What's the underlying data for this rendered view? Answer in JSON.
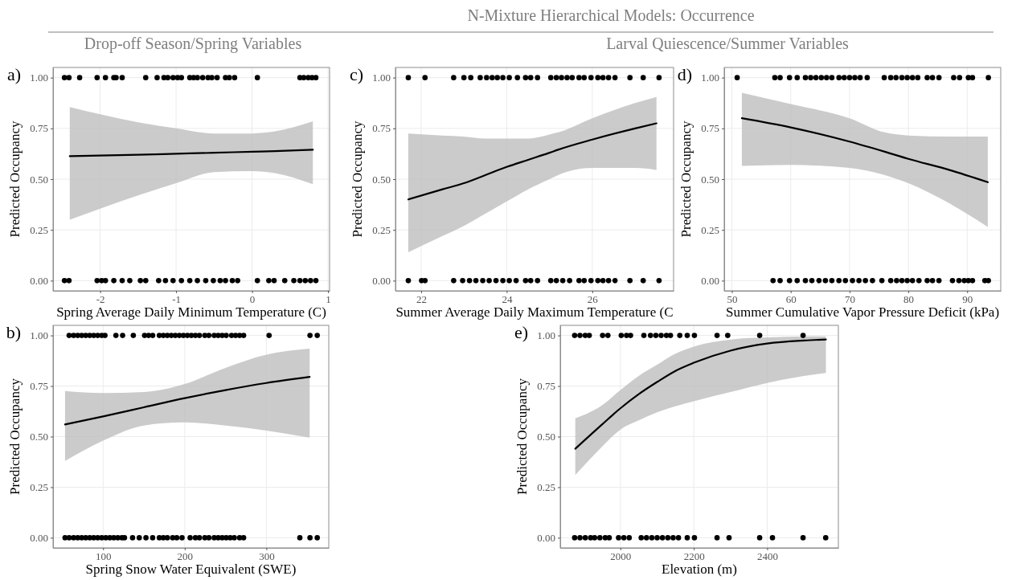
{
  "chart_data": [
    {
      "type": "other",
      "title": "N-Mixture Hierarchical Models: Occurrence",
      "annotations": [
        "Drop-off Season/Spring Variables",
        "Larval Quiescence/Summer Variables"
      ]
    },
    {
      "type": "line",
      "annotations": [
        "a)"
      ],
      "xlabel": "Spring Average Daily Minimum Temperature (C)",
      "ylabel": "Predicted Occupancy",
      "xlim": [
        -2.62,
        1.02
      ],
      "ylim": [
        -0.05,
        1.05
      ],
      "xticks": [
        -2,
        -1,
        0,
        1
      ],
      "yticks": [
        {
          "value": 0,
          "label": "0.00"
        },
        {
          "value": 0.25,
          "label": "0.25"
        },
        {
          "value": 0.5,
          "label": "0.50"
        },
        {
          "value": 0.75,
          "label": "0.75"
        },
        {
          "value": 1,
          "label": "1.00"
        }
      ],
      "grid": true,
      "series": [
        {
          "type": "line",
          "color": "#000000",
          "x": [
            -2.4,
            -1.5,
            -1,
            -0.5,
            0,
            0.3,
            0.8
          ],
          "values": [
            0.613,
            0.62,
            0.625,
            0.63,
            0.635,
            0.638,
            0.645
          ],
          "lower": [
            0.3,
            0.42,
            0.48,
            0.535,
            0.54,
            0.53,
            0.475
          ],
          "upper": [
            0.855,
            0.78,
            0.75,
            0.725,
            0.725,
            0.735,
            0.785
          ]
        },
        {
          "type": "scatter",
          "marker": "circle",
          "color": "#000000",
          "x": [
            -2.47,
            -2.41,
            -2.27,
            -2.04,
            -1.93,
            -1.82,
            -1.79,
            -1.71,
            -1.4,
            -1.25,
            -1.16,
            -1.11,
            -1.04,
            -0.98,
            -0.93,
            -0.82,
            -0.77,
            -0.72,
            -0.65,
            -0.58,
            -0.53,
            -0.46,
            -0.35,
            -0.3,
            -0.23,
            0.07,
            0.63,
            0.68,
            0.74,
            0.79,
            0.84
          ],
          "values": [
            1,
            1,
            1,
            1,
            1,
            1,
            1,
            1,
            1,
            1,
            1,
            1,
            1,
            1,
            1,
            1,
            1,
            1,
            1,
            1,
            1,
            1,
            1,
            1,
            1,
            1,
            1,
            1,
            1,
            1,
            1
          ]
        },
        {
          "type": "scatter",
          "marker": "circle",
          "color": "#000000",
          "x": [
            -2.47,
            -2.41,
            -2.04,
            -1.98,
            -1.93,
            -1.82,
            -1.71,
            -1.61,
            -1.47,
            -1.4,
            -1.23,
            -1.14,
            -1.04,
            -0.93,
            -0.82,
            -0.72,
            -0.61,
            -0.51,
            -0.42,
            -0.35,
            -0.26,
            -0.19,
            0.07,
            0.22,
            0.29,
            0.43,
            0.55,
            0.63,
            0.7,
            0.77,
            0.84
          ],
          "values": [
            0,
            0,
            0,
            0,
            0,
            0,
            0,
            0,
            0,
            0,
            0,
            0,
            0,
            0,
            0,
            0,
            0,
            0,
            0,
            0,
            0,
            0,
            0,
            0,
            0,
            0,
            0,
            0,
            0,
            0,
            0
          ]
        }
      ]
    },
    {
      "type": "line",
      "annotations": [
        "c)"
      ],
      "xlabel": "Summer Average Daily Maximum Temperature (C",
      "ylabel": "Predicted Occupancy",
      "xlim": [
        21.4,
        27.9
      ],
      "ylim": [
        -0.05,
        1.05
      ],
      "xticks": [
        22,
        24,
        26
      ],
      "yticks": [
        {
          "value": 0,
          "label": "0.00"
        },
        {
          "value": 0.25,
          "label": "0.25"
        },
        {
          "value": 0.5,
          "label": "0.50"
        },
        {
          "value": 0.75,
          "label": "0.75"
        },
        {
          "value": 1,
          "label": "1.00"
        }
      ],
      "grid": true,
      "series": [
        {
          "type": "line",
          "color": "#000000",
          "x": [
            21.7,
            22.5,
            23,
            23.5,
            24,
            24.5,
            25,
            25.2,
            26,
            27,
            27.5
          ],
          "values": [
            0.4,
            0.45,
            0.48,
            0.52,
            0.56,
            0.595,
            0.63,
            0.645,
            0.695,
            0.75,
            0.775
          ],
          "lower": [
            0.14,
            0.22,
            0.27,
            0.33,
            0.39,
            0.45,
            0.5,
            0.52,
            0.555,
            0.555,
            0.545
          ],
          "upper": [
            0.725,
            0.715,
            0.71,
            0.7,
            0.7,
            0.7,
            0.72,
            0.73,
            0.8,
            0.875,
            0.905
          ]
        },
        {
          "type": "scatter",
          "marker": "circle",
          "color": "#000000",
          "x": [
            21.7,
            22.09,
            22.76,
            23.0,
            23.16,
            23.38,
            23.53,
            23.66,
            23.78,
            23.91,
            24.06,
            24.25,
            24.44,
            24.56,
            24.72,
            25.03,
            25.16,
            25.28,
            25.41,
            25.53,
            25.69,
            25.81,
            25.97,
            26.13,
            26.25,
            26.38,
            26.53,
            26.88,
            27.19,
            27.56
          ],
          "values": [
            1,
            1,
            1,
            1,
            1,
            1,
            1,
            1,
            1,
            1,
            1,
            1,
            1,
            1,
            1,
            1,
            1,
            1,
            1,
            1,
            1,
            1,
            1,
            1,
            1,
            1,
            1,
            1,
            1,
            1
          ]
        },
        {
          "type": "scatter",
          "marker": "circle",
          "color": "#000000",
          "x": [
            21.7,
            22.01,
            22.09,
            22.76,
            22.97,
            23.13,
            23.28,
            23.44,
            23.59,
            23.75,
            23.91,
            24.06,
            24.22,
            24.44,
            24.56,
            24.72,
            25.03,
            25.16,
            25.31,
            25.47,
            25.69,
            25.81,
            25.97,
            26.13,
            26.25,
            26.38,
            26.53,
            26.88,
            27.19,
            27.56
          ],
          "values": [
            0,
            0,
            0,
            0,
            0,
            0,
            0,
            0,
            0,
            0,
            0,
            0,
            0,
            0,
            0,
            0,
            0,
            0,
            0,
            0,
            0,
            0,
            0,
            0,
            0,
            0,
            0,
            0,
            0,
            0
          ]
        }
      ]
    },
    {
      "type": "line",
      "annotations": [
        "d)"
      ],
      "xlabel": "Summer Cumulative Vapor Pressure Deficit (kPa)",
      "ylabel": "Predicted Occupancy",
      "xlim": [
        48.7,
        95.7
      ],
      "ylim": [
        -0.05,
        1.05
      ],
      "xticks": [
        50,
        60,
        70,
        80,
        90
      ],
      "yticks": [
        {
          "value": 0,
          "label": "0.00"
        },
        {
          "value": 0.25,
          "label": "0.25"
        },
        {
          "value": 0.5,
          "label": "0.50"
        },
        {
          "value": 0.75,
          "label": "0.75"
        },
        {
          "value": 1,
          "label": "1.00"
        }
      ],
      "grid": true,
      "series": [
        {
          "type": "line",
          "color": "#000000",
          "x": [
            51.7,
            60,
            70,
            76,
            80,
            87,
            93.5
          ],
          "values": [
            0.8,
            0.755,
            0.685,
            0.635,
            0.6,
            0.545,
            0.485
          ],
          "lower": [
            0.565,
            0.57,
            0.555,
            0.52,
            0.48,
            0.38,
            0.265
          ],
          "upper": [
            0.925,
            0.87,
            0.8,
            0.73,
            0.715,
            0.71,
            0.71
          ]
        },
        {
          "type": "scatter",
          "marker": "circle",
          "color": "#000000",
          "x": [
            50.9,
            57.3,
            58.2,
            59.8,
            61.1,
            62.5,
            63.4,
            64.3,
            65.2,
            66.1,
            67.0,
            68.2,
            69.1,
            70.0,
            70.9,
            71.8,
            73.0,
            75.9,
            77.0,
            77.9,
            78.9,
            79.8,
            80.7,
            81.6,
            83.2,
            84.1,
            85.2,
            87.7,
            88.7,
            90.2,
            90.9,
            93.6
          ],
          "values": [
            1,
            1,
            1,
            1,
            1,
            1,
            1,
            1,
            1,
            1,
            1,
            1,
            1,
            1,
            1,
            1,
            1,
            1,
            1,
            1,
            1,
            1,
            1,
            1,
            1,
            1,
            1,
            1,
            1,
            1,
            1,
            1
          ]
        },
        {
          "type": "scatter",
          "marker": "circle",
          "color": "#000000",
          "x": [
            57.0,
            58.2,
            59.8,
            61.1,
            62.5,
            63.6,
            64.8,
            65.9,
            67.0,
            68.2,
            69.3,
            70.5,
            71.6,
            72.7,
            73.9,
            75.5,
            77.0,
            78.0,
            78.9,
            79.8,
            80.7,
            81.8,
            83.2,
            84.1,
            85.2,
            87.5,
            88.6,
            89.5,
            90.2,
            90.9,
            93.0,
            93.6
          ],
          "values": [
            0,
            0,
            0,
            0,
            0,
            0,
            0,
            0,
            0,
            0,
            0,
            0,
            0,
            0,
            0,
            0,
            0,
            0,
            0,
            0,
            0,
            0,
            0,
            0,
            0,
            0,
            0,
            0,
            0,
            0,
            0,
            0
          ]
        }
      ]
    },
    {
      "type": "line",
      "annotations": [
        "b)"
      ],
      "xlabel": "Spring Snow Water Equivalent (SWE)",
      "ylabel": "Predicted Occupancy",
      "xlim": [
        38.7,
        376.4
      ],
      "ylim": [
        -0.05,
        1.05
      ],
      "xticks": [
        100,
        200,
        300
      ],
      "yticks": [
        {
          "value": 0,
          "label": "0.00"
        },
        {
          "value": 0.25,
          "label": "0.25"
        },
        {
          "value": 0.5,
          "label": "0.50"
        },
        {
          "value": 0.75,
          "label": "0.75"
        },
        {
          "value": 1,
          "label": "1.00"
        }
      ],
      "grid": true,
      "series": [
        {
          "type": "line",
          "color": "#000000",
          "x": [
            53.4,
            100,
            150,
            200,
            250,
            300,
            353
          ],
          "values": [
            0.56,
            0.6,
            0.645,
            0.69,
            0.73,
            0.765,
            0.795
          ],
          "lower": [
            0.38,
            0.48,
            0.555,
            0.57,
            0.555,
            0.53,
            0.495
          ],
          "upper": [
            0.725,
            0.715,
            0.72,
            0.76,
            0.84,
            0.905,
            0.935
          ]
        },
        {
          "type": "scatter",
          "marker": "circle",
          "color": "#000000",
          "x": [
            58.4,
            63.9,
            68.9,
            73.8,
            78.7,
            83.6,
            88.5,
            93.4,
            98.4,
            102.3,
            115.7,
            123.9,
            137.0,
            150.8,
            155.7,
            160.7,
            168.9,
            173.8,
            178.7,
            183.6,
            188.5,
            193.4,
            198.4,
            203.3,
            208.2,
            213.1,
            218.0,
            224.6,
            229.5,
            236.1,
            241.0,
            245.9,
            250.8,
            257.4,
            262.3,
            267.2,
            272.1,
            303.3,
            353.4,
            362.3
          ],
          "values": [
            1,
            1,
            1,
            1,
            1,
            1,
            1,
            1,
            1,
            1,
            1,
            1,
            1,
            1,
            1,
            1,
            1,
            1,
            1,
            1,
            1,
            1,
            1,
            1,
            1,
            1,
            1,
            1,
            1,
            1,
            1,
            1,
            1,
            1,
            1,
            1,
            1,
            1,
            1,
            1
          ]
        },
        {
          "type": "scatter",
          "marker": "circle",
          "color": "#000000",
          "x": [
            53.4,
            58.4,
            63.9,
            68.9,
            73.8,
            78.7,
            83.6,
            88.5,
            93.4,
            98.4,
            103.3,
            108.2,
            113.1,
            118.0,
            123.0,
            126.2,
            136.1,
            144.3,
            152.5,
            160.7,
            168.9,
            173.8,
            178.7,
            185.2,
            190.2,
            196.7,
            206.6,
            213.1,
            218.0,
            224.6,
            229.5,
            236.1,
            241.0,
            245.9,
            250.8,
            255.7,
            260.7,
            267.2,
            272.1,
            341.0,
            353.4,
            362.3
          ],
          "values": [
            0,
            0,
            0,
            0,
            0,
            0,
            0,
            0,
            0,
            0,
            0,
            0,
            0,
            0,
            0,
            0,
            0,
            0,
            0,
            0,
            0,
            0,
            0,
            0,
            0,
            0,
            0,
            0,
            0,
            0,
            0,
            0,
            0,
            0,
            0,
            0,
            0,
            0,
            0,
            0,
            0,
            0
          ]
        }
      ]
    },
    {
      "type": "line",
      "annotations": [
        "e)"
      ],
      "xlabel": "Elevation (m)",
      "ylabel": "Predicted Occupancy",
      "xlim": [
        1836,
        2594
      ],
      "ylim": [
        -0.05,
        1.05
      ],
      "xticks": [
        2000,
        2200,
        2400
      ],
      "yticks": [
        {
          "value": 0,
          "label": "0.00"
        },
        {
          "value": 0.25,
          "label": "0.25"
        },
        {
          "value": 0.5,
          "label": "0.50"
        },
        {
          "value": 0.75,
          "label": "0.75"
        },
        {
          "value": 1,
          "label": "1.00"
        }
      ],
      "grid": true,
      "series": [
        {
          "type": "line",
          "color": "#000000",
          "x": [
            1877,
            1950,
            2000,
            2050,
            2100,
            2150,
            2200,
            2300,
            2400,
            2500,
            2560
          ],
          "values": [
            0.44,
            0.56,
            0.64,
            0.71,
            0.77,
            0.825,
            0.865,
            0.925,
            0.96,
            0.975,
            0.98
          ],
          "lower": [
            0.31,
            0.45,
            0.535,
            0.58,
            0.62,
            0.65,
            0.675,
            0.72,
            0.765,
            0.8,
            0.815
          ],
          "upper": [
            0.59,
            0.655,
            0.73,
            0.8,
            0.855,
            0.91,
            0.945,
            0.98,
            0.99,
            0.995,
            0.995
          ]
        },
        {
          "type": "scatter",
          "marker": "circle",
          "color": "#000000",
          "x": [
            1875.2,
            1889.7,
            1904.2,
            1915.1,
            1951.4,
            1965.9,
            2002.2,
            2016.7,
            2027.6,
            2063.9,
            2082.0,
            2096.5,
            2111.0,
            2125.5,
            2136.4,
            2161.8,
            2182.1,
            2201.7,
            2263.4,
            2292.4,
            2379.5,
            2497.8
          ],
          "values": [
            1,
            1,
            1,
            1,
            1,
            1,
            1,
            1,
            1,
            1,
            1,
            1,
            1,
            1,
            1,
            1,
            1,
            1,
            1,
            1,
            1,
            1
          ]
        },
        {
          "type": "scatter",
          "marker": "circle",
          "color": "#000000",
          "x": [
            1875.2,
            1889.7,
            1904.2,
            1918.7,
            1929.6,
            1944.1,
            1958.6,
            1969.5,
            1994.9,
            2009.4,
            2023.9,
            2056.6,
            2071.1,
            2085.6,
            2100.1,
            2114.6,
            2129.2,
            2143.7,
            2158.2,
            2182.1,
            2201.7,
            2263.4,
            2296.1,
            2379.5,
            2414.4,
            2497.8,
            2559.5
          ],
          "values": [
            0,
            0,
            0,
            0,
            0,
            0,
            0,
            0,
            0,
            0,
            0,
            0,
            0,
            0,
            0,
            0,
            0,
            0,
            0,
            0,
            0,
            0,
            0,
            0,
            0,
            0,
            0
          ]
        }
      ]
    }
  ]
}
